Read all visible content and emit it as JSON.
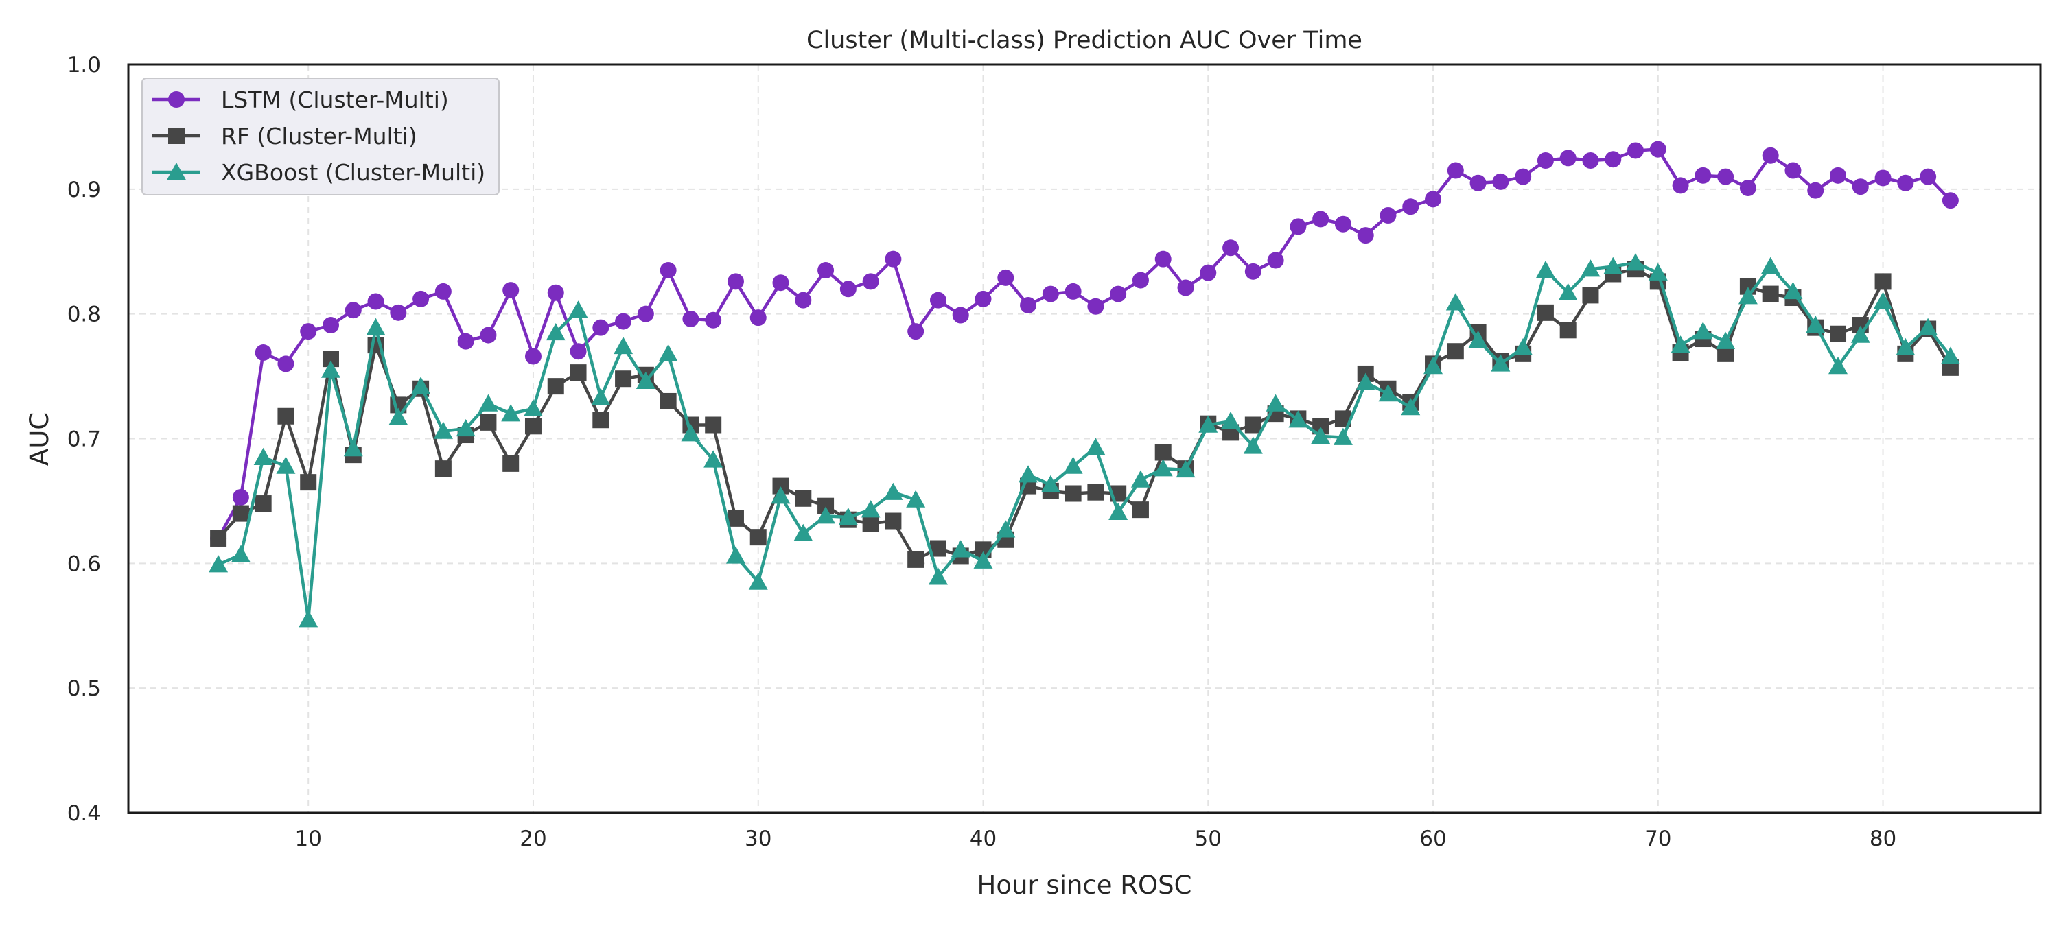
{
  "chart_data": {
    "type": "line",
    "title": "Cluster (Multi-class) Prediction AUC Over Time",
    "xlabel": "Hour since ROSC",
    "ylabel": "AUC",
    "xlim": [
      2,
      87
    ],
    "ylim": [
      0.4,
      1.0
    ],
    "xticks": [
      10,
      20,
      30,
      40,
      50,
      60,
      70,
      80
    ],
    "yticks": [
      0.4,
      0.5,
      0.6,
      0.7,
      0.8,
      0.9,
      1.0
    ],
    "grid": true,
    "legend_position": "top-left",
    "x": [
      6,
      7,
      8,
      9,
      10,
      11,
      12,
      13,
      14,
      15,
      16,
      17,
      18,
      19,
      20,
      21,
      22,
      23,
      24,
      25,
      26,
      27,
      28,
      29,
      30,
      31,
      32,
      33,
      34,
      35,
      36,
      37,
      38,
      39,
      40,
      41,
      42,
      43,
      44,
      45,
      46,
      47,
      48,
      49,
      50,
      51,
      52,
      53,
      54,
      55,
      56,
      57,
      58,
      59,
      60,
      61,
      62,
      63,
      64,
      65,
      66,
      67,
      68,
      69,
      70,
      71,
      72,
      73,
      74,
      75,
      76,
      77,
      78,
      79,
      80,
      81,
      82,
      83
    ],
    "series": [
      {
        "name": "LSTM (Cluster-Multi)",
        "color": "#7b2cbf",
        "marker": "circle",
        "values": [
          0.62,
          0.653,
          0.769,
          0.76,
          0.786,
          0.791,
          0.803,
          0.81,
          0.801,
          0.812,
          0.818,
          0.778,
          0.783,
          0.819,
          0.766,
          0.817,
          0.77,
          0.789,
          0.794,
          0.8,
          0.835,
          0.796,
          0.795,
          0.826,
          0.797,
          0.825,
          0.811,
          0.835,
          0.82,
          0.826,
          0.844,
          0.786,
          0.811,
          0.799,
          0.812,
          0.829,
          0.807,
          0.816,
          0.818,
          0.806,
          0.816,
          0.827,
          0.844,
          0.821,
          0.833,
          0.853,
          0.834,
          0.843,
          0.87,
          0.876,
          0.872,
          0.863,
          0.879,
          0.886,
          0.892,
          0.915,
          0.905,
          0.906,
          0.91,
          0.923,
          0.925,
          0.923,
          0.924,
          0.931,
          0.932,
          0.903,
          0.911,
          0.91,
          0.901,
          0.927,
          0.915,
          0.899,
          0.911,
          0.902,
          0.909,
          0.905,
          0.91,
          0.891
        ]
      },
      {
        "name": "RF (Cluster-Multi)",
        "color": "#464646",
        "marker": "square",
        "values": [
          0.62,
          0.64,
          0.648,
          0.718,
          0.665,
          0.764,
          0.687,
          0.775,
          0.727,
          0.74,
          0.676,
          0.703,
          0.713,
          0.68,
          0.71,
          0.742,
          0.753,
          0.715,
          0.748,
          0.751,
          0.73,
          0.711,
          0.711,
          0.636,
          0.621,
          0.662,
          0.652,
          0.646,
          0.635,
          0.632,
          0.634,
          0.603,
          0.612,
          0.606,
          0.611,
          0.619,
          0.662,
          0.658,
          0.656,
          0.657,
          0.656,
          0.643,
          0.689,
          0.676,
          0.712,
          0.705,
          0.711,
          0.72,
          0.716,
          0.71,
          0.716,
          0.752,
          0.74,
          0.729,
          0.76,
          0.77,
          0.785,
          0.762,
          0.768,
          0.801,
          0.787,
          0.815,
          0.832,
          0.836,
          0.826,
          0.769,
          0.78,
          0.768,
          0.822,
          0.816,
          0.813,
          0.789,
          0.784,
          0.791,
          0.826,
          0.768,
          0.788,
          0.757
        ]
      },
      {
        "name": "XGBoost (Cluster-Multi)",
        "color": "#2a9d8f",
        "marker": "triangle",
        "values": [
          0.599,
          0.607,
          0.685,
          0.678,
          0.555,
          0.755,
          0.692,
          0.789,
          0.717,
          0.742,
          0.706,
          0.708,
          0.728,
          0.72,
          0.724,
          0.785,
          0.803,
          0.733,
          0.774,
          0.746,
          0.768,
          0.704,
          0.683,
          0.606,
          0.585,
          0.654,
          0.624,
          0.638,
          0.637,
          0.643,
          0.657,
          0.651,
          0.589,
          0.611,
          0.602,
          0.627,
          0.671,
          0.663,
          0.678,
          0.693,
          0.641,
          0.667,
          0.676,
          0.675,
          0.711,
          0.714,
          0.694,
          0.728,
          0.715,
          0.702,
          0.701,
          0.745,
          0.736,
          0.725,
          0.758,
          0.809,
          0.779,
          0.76,
          0.773,
          0.835,
          0.817,
          0.836,
          0.838,
          0.841,
          0.833,
          0.775,
          0.786,
          0.778,
          0.814,
          0.838,
          0.818,
          0.791,
          0.758,
          0.783,
          0.81,
          0.773,
          0.789,
          0.766
        ]
      }
    ]
  }
}
